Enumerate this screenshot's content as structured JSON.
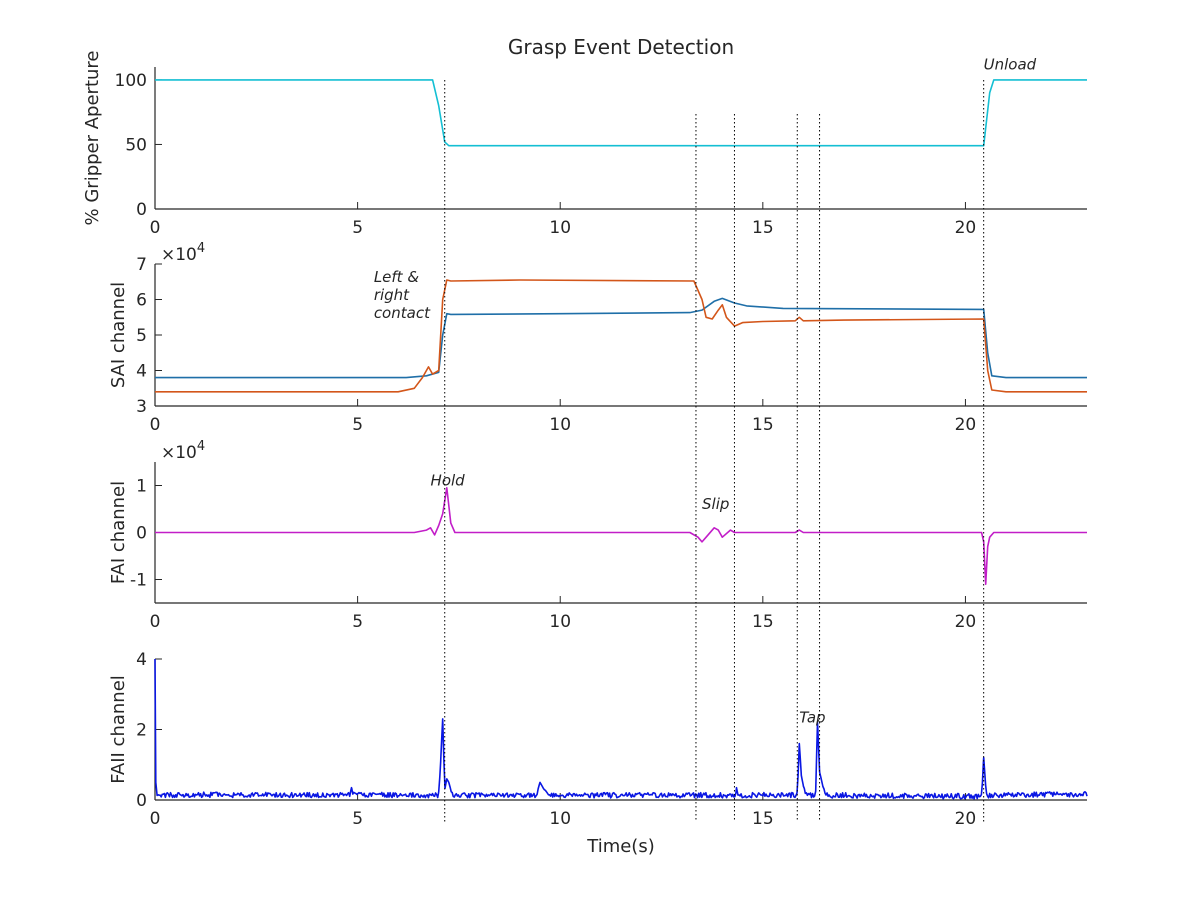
{
  "chart_data": [
    {
      "type": "line",
      "title": "Grasp Event Detection",
      "xlabel": "",
      "ylabel": "% Gripper Aperture",
      "xlim": [
        0,
        23
      ],
      "ylim": [
        0,
        110
      ],
      "xticks": [
        "0",
        "5",
        "10",
        "15",
        "20"
      ],
      "yticks": [
        "0",
        "50",
        "100"
      ],
      "y_scale_label": "",
      "series": [
        {
          "color": "#14bfd3",
          "x": [
            0,
            6.85,
            7.0,
            7.15,
            7.25,
            20.45,
            20.6,
            20.7,
            23
          ],
          "y": [
            100,
            100,
            80,
            52,
            49,
            49,
            90,
            100,
            100
          ]
        }
      ],
      "annotations": [
        {
          "text": "Unload",
          "x": 20.45,
          "y": 108
        }
      ]
    },
    {
      "type": "line",
      "xlabel": "",
      "ylabel": "SAI channel",
      "xlim": [
        0,
        23
      ],
      "ylim": [
        3,
        7
      ],
      "xticks": [
        "0",
        "5",
        "10",
        "15",
        "20"
      ],
      "yticks": [
        "3",
        "4",
        "5",
        "6",
        "7"
      ],
      "y_scale_label": "×10",
      "y_scale_exp": "4",
      "series": [
        {
          "color": "#1f6fa8",
          "x": [
            0,
            6.2,
            6.7,
            7.0,
            7.1,
            7.2,
            7.3,
            10,
            13.2,
            13.5,
            13.8,
            14.0,
            14.3,
            14.6,
            15.5,
            20.45,
            20.55,
            20.65,
            21,
            23
          ],
          "y": [
            3.8,
            3.8,
            3.85,
            3.95,
            5.0,
            5.6,
            5.58,
            5.6,
            5.63,
            5.7,
            5.95,
            6.03,
            5.9,
            5.82,
            5.75,
            5.72,
            4.5,
            3.85,
            3.8,
            3.8
          ]
        },
        {
          "color": "#d3561a",
          "x": [
            0,
            6.0,
            6.4,
            6.6,
            6.75,
            6.85,
            7.0,
            7.1,
            7.2,
            7.3,
            9,
            13.3,
            13.5,
            13.6,
            13.75,
            13.9,
            14.0,
            14.1,
            14.3,
            14.5,
            15.0,
            15.8,
            15.9,
            16.0,
            17,
            20.45,
            20.55,
            20.65,
            21,
            23
          ],
          "y": [
            3.4,
            3.4,
            3.5,
            3.8,
            4.1,
            3.9,
            4.0,
            6.0,
            6.55,
            6.52,
            6.55,
            6.52,
            6.0,
            5.5,
            5.45,
            5.7,
            5.85,
            5.5,
            5.25,
            5.35,
            5.38,
            5.4,
            5.5,
            5.4,
            5.42,
            5.45,
            4.0,
            3.45,
            3.4,
            3.4
          ]
        }
      ],
      "annotations": [
        {
          "text": "Left &\nright\ncontact",
          "x": 5.4,
          "y": 6.5
        }
      ]
    },
    {
      "type": "line",
      "xlabel": "",
      "ylabel": "FAI channel",
      "xlim": [
        0,
        23
      ],
      "ylim": [
        -1.5,
        1.5
      ],
      "xticks": [
        "0",
        "5",
        "10",
        "15",
        "20"
      ],
      "yticks": [
        "-1",
        "0",
        "1"
      ],
      "y_scale_label": "×10",
      "y_scale_exp": "4",
      "series": [
        {
          "color": "#c21ec8",
          "x": [
            0,
            6.4,
            6.7,
            6.8,
            6.9,
            7.0,
            7.1,
            7.2,
            7.3,
            7.4,
            13.2,
            13.4,
            13.5,
            13.6,
            13.8,
            13.9,
            14.0,
            14.2,
            14.3,
            15.8,
            15.9,
            16.0,
            20.4,
            20.45,
            20.5,
            20.55,
            20.6,
            20.7,
            23
          ],
          "y": [
            0,
            0,
            0.05,
            0.1,
            -0.05,
            0.15,
            0.4,
            0.95,
            0.2,
            0,
            0,
            -0.1,
            -0.2,
            -0.1,
            0.1,
            0.05,
            -0.1,
            0.05,
            0,
            0,
            0.05,
            0,
            0,
            -0.2,
            -1.1,
            -0.3,
            -0.1,
            0,
            0
          ]
        }
      ],
      "annotations": [
        {
          "text": "Hold",
          "x": 6.8,
          "y": 1.0
        },
        {
          "text": "Slip",
          "x": 13.5,
          "y": 0.5
        }
      ]
    },
    {
      "type": "line",
      "xlabel": "Time(s)",
      "ylabel": "FAII channel",
      "xlim": [
        0,
        23
      ],
      "ylim": [
        0,
        4
      ],
      "xticks": [
        "0",
        "5",
        "10",
        "15",
        "20"
      ],
      "yticks": [
        "0",
        "2",
        "4"
      ],
      "y_scale_label": "",
      "series": [
        {
          "color": "#0a17e3",
          "x": [
            0,
            0.02,
            0.05,
            0.1,
            3.0,
            4.8,
            4.85,
            4.9,
            7.0,
            7.05,
            7.1,
            7.15,
            7.2,
            7.25,
            7.3,
            7.35,
            9.4,
            9.5,
            9.6,
            9.7,
            14.3,
            14.35,
            14.4,
            15.85,
            15.9,
            15.95,
            16.0,
            16.1,
            16.3,
            16.35,
            16.4,
            16.5,
            16.6,
            20.4,
            20.45,
            20.5,
            20.55,
            23
          ],
          "y": [
            4.0,
            0.5,
            0.2,
            0.12,
            0.12,
            0.12,
            0.35,
            0.12,
            0.1,
            1.1,
            2.3,
            0.3,
            0.6,
            0.5,
            0.3,
            0.1,
            0.1,
            0.5,
            0.3,
            0.1,
            0.1,
            0.35,
            0.1,
            0.1,
            1.6,
            0.7,
            0.4,
            0.1,
            0.1,
            2.2,
            0.8,
            0.3,
            0.1,
            0.05,
            1.2,
            0.4,
            0.1,
            0.15
          ]
        }
      ],
      "noise_seed": 7,
      "annotations": [
        {
          "text": "Tap",
          "x": 15.9,
          "y": 2.2
        }
      ]
    }
  ],
  "event_lines_x": [
    7.15,
    13.35,
    14.3,
    15.85,
    16.4,
    20.45
  ]
}
